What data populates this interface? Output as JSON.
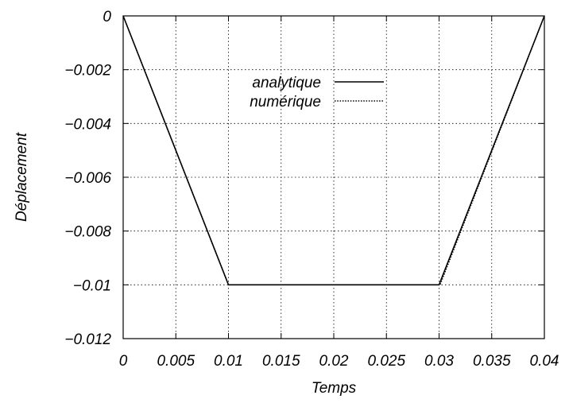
{
  "chart_data": {
    "type": "line",
    "title": "",
    "xlabel": "Temps",
    "ylabel": "Déplacement",
    "xlim": [
      0,
      0.04
    ],
    "ylim": [
      -0.012,
      0
    ],
    "grid": true,
    "legend_position": "top-center",
    "x_ticks": [
      0,
      0.005,
      0.01,
      0.015,
      0.02,
      0.025,
      0.03,
      0.035,
      0.04
    ],
    "x_tick_labels": [
      "0",
      "0.005",
      "0.01",
      "0.015",
      "0.02",
      "0.025",
      "0.03",
      "0.035",
      "0.04"
    ],
    "y_ticks": [
      0,
      -0.002,
      -0.004,
      -0.006,
      -0.008,
      -0.01,
      -0.012
    ],
    "y_tick_labels": [
      "0",
      "−0.002",
      "−0.004",
      "−0.006",
      "−0.008",
      "−0.01",
      "−0.012"
    ],
    "series": [
      {
        "name": "analytique",
        "style": "solid",
        "color": "#000000",
        "x": [
          0,
          0.01,
          0.03,
          0.04
        ],
        "y": [
          0,
          -0.01,
          -0.01,
          0
        ]
      },
      {
        "name": "numérique",
        "style": "dotted",
        "color": "#000000",
        "x": [
          0,
          0.01,
          0.0301,
          0.04
        ],
        "y": [
          0,
          -0.01,
          -0.01,
          0
        ]
      }
    ]
  }
}
